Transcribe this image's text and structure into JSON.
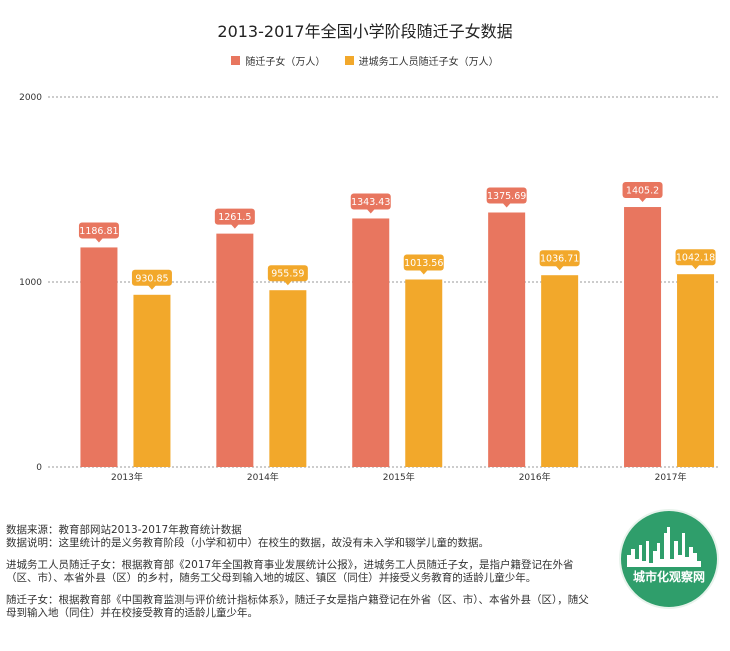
{
  "chart_data": {
    "type": "bar",
    "title": "2013-2017年全国小学阶段随迁子女数据",
    "categories": [
      "2013年",
      "2014年",
      "2015年",
      "2016年",
      "2017年"
    ],
    "series": [
      {
        "name": "随迁子女（万人）",
        "color": "#e8765f",
        "values": [
          1186.81,
          1261.5,
          1343.43,
          1375.69,
          1405.2
        ]
      },
      {
        "name": "进城务工人员随迁子女（万人）",
        "color": "#f2a82b",
        "values": [
          930.85,
          955.59,
          1013.56,
          1036.71,
          1042.18
        ]
      }
    ],
    "ylim": [
      0,
      2000
    ],
    "yticks": [
      "0",
      "1000",
      "2000"
    ],
    "grid": true,
    "legend_position": "top",
    "data_labels": true
  },
  "notes": [
    "数据来源：教育部网站2013-2017年教育统计数据",
    "数据说明：这里统计的是义务教育阶段（小学和初中）在校生的数据，故没有未入学和辍学儿童的数据。",
    "进城务工人员随迁子女：根据教育部《2017年全国教育事业发展统计公报》，进城务工人员随迁子女，是指户籍登记在外省（区、市）、本省外县（区）的乡村，随务工父母到输入地的城区、镇区（同住）并接受义务教育的适龄儿童少年。",
    "随迁子女：根据教育部《中国教育监测与评价统计指标体系》，随迁子女是指户籍登记在外省（区、市）、本省外县（区），随父母到输入地（同住）并在校接受教育的适龄儿童少年。"
  ],
  "logo": {
    "text": "城市化观察网",
    "color": "#2f9e6b"
  }
}
